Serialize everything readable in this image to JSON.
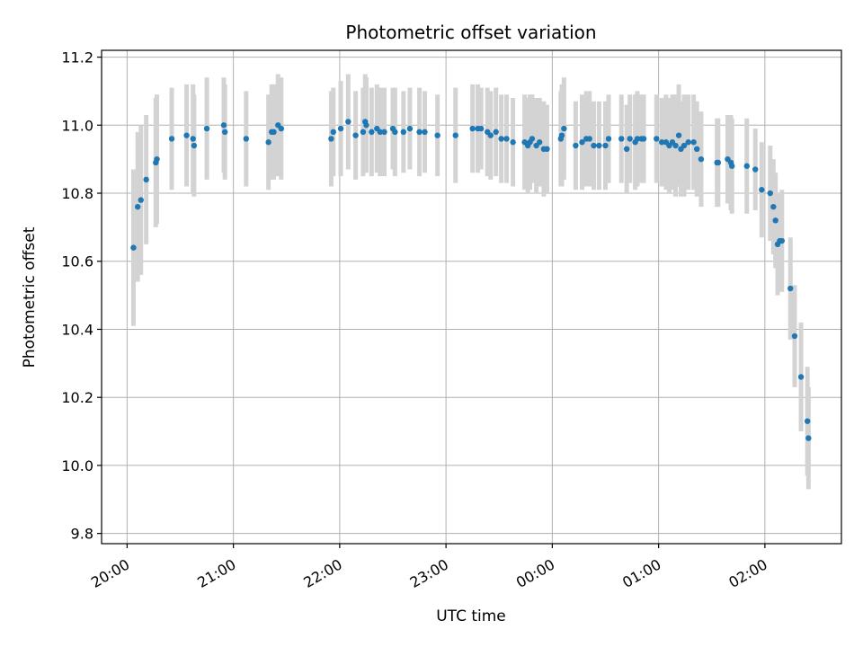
{
  "chart_data": {
    "type": "scatter",
    "title": "Photometric offset variation",
    "xlabel": "UTC time",
    "ylabel": "Photometric offset",
    "grid": true,
    "legend": "none",
    "x_ticks": [
      "20:00",
      "21:00",
      "22:00",
      "23:00",
      "00:00",
      "01:00",
      "02:00"
    ],
    "x_tick_hours": [
      20,
      21,
      22,
      23,
      24,
      25,
      26
    ],
    "y_ticks": [
      9.8,
      10.0,
      10.2,
      10.4,
      10.6,
      10.8,
      11.0,
      11.2
    ],
    "xlim_hours": [
      19.76,
      26.72
    ],
    "ylim": [
      9.77,
      11.22
    ],
    "colors": {
      "point": "#1f77b4",
      "errorbar": "#d3d3d3"
    },
    "series": [
      {
        "x_hours": [
          20.06,
          20.1,
          20.13,
          20.18,
          20.27,
          20.28,
          20.42,
          20.56,
          20.62,
          20.63,
          20.75,
          20.91,
          20.92,
          21.12,
          21.33,
          21.36,
          21.38,
          21.42,
          21.45,
          21.92,
          21.94,
          22.01,
          22.08,
          22.15,
          22.22,
          22.24,
          22.25,
          22.3,
          22.35,
          22.38,
          22.42,
          22.5,
          22.52,
          22.6,
          22.66,
          22.75,
          22.8,
          22.92,
          23.09,
          23.25,
          23.3,
          23.33,
          23.39,
          23.42,
          23.47,
          23.52,
          23.57,
          23.63,
          23.74,
          23.77,
          23.79,
          23.81,
          23.85,
          23.88,
          23.92,
          23.95,
          24.08,
          24.09,
          24.11,
          24.22,
          24.28,
          24.32,
          24.35,
          24.39,
          24.44,
          24.5,
          24.53,
          24.65,
          24.7,
          24.73,
          24.78,
          24.8,
          24.84,
          24.86,
          24.98,
          25.03,
          25.07,
          25.1,
          25.13,
          25.16,
          25.19,
          25.21,
          25.24,
          25.28,
          25.33,
          25.36,
          25.4,
          25.55,
          25.56,
          25.65,
          25.68,
          25.69,
          25.83,
          25.91,
          25.97,
          26.05,
          26.08,
          26.1,
          26.12,
          26.14,
          26.16,
          26.24,
          26.28,
          26.34,
          26.4,
          26.41
        ],
        "y": [
          10.64,
          10.76,
          10.78,
          10.84,
          10.89,
          10.9,
          10.96,
          10.97,
          10.96,
          10.94,
          10.99,
          11.0,
          10.98,
          10.96,
          10.95,
          10.98,
          10.98,
          11.0,
          10.99,
          10.96,
          10.98,
          10.99,
          11.01,
          10.97,
          10.98,
          11.01,
          11.0,
          10.98,
          10.99,
          10.98,
          10.98,
          10.99,
          10.98,
          10.98,
          10.99,
          10.98,
          10.98,
          10.97,
          10.97,
          10.99,
          10.99,
          10.99,
          10.98,
          10.97,
          10.98,
          10.96,
          10.96,
          10.95,
          10.95,
          10.94,
          10.95,
          10.96,
          10.94,
          10.95,
          10.93,
          10.93,
          10.96,
          10.97,
          10.99,
          10.94,
          10.95,
          10.96,
          10.96,
          10.94,
          10.94,
          10.94,
          10.96,
          10.96,
          10.93,
          10.96,
          10.95,
          10.96,
          10.96,
          10.96,
          10.96,
          10.95,
          10.95,
          10.94,
          10.95,
          10.94,
          10.97,
          10.93,
          10.94,
          10.95,
          10.95,
          10.93,
          10.9,
          10.89,
          10.89,
          10.9,
          10.89,
          10.88,
          10.88,
          10.87,
          10.81,
          10.8,
          10.76,
          10.72,
          10.65,
          10.66,
          10.66,
          10.52,
          10.38,
          10.26,
          10.13,
          10.08
        ],
        "err": [
          0.23,
          0.22,
          0.22,
          0.19,
          0.19,
          0.19,
          0.15,
          0.15,
          0.16,
          0.15,
          0.15,
          0.14,
          0.14,
          0.14,
          0.14,
          0.14,
          0.14,
          0.15,
          0.15,
          0.14,
          0.13,
          0.14,
          0.14,
          0.13,
          0.13,
          0.14,
          0.14,
          0.13,
          0.13,
          0.13,
          0.13,
          0.12,
          0.13,
          0.12,
          0.12,
          0.13,
          0.12,
          0.12,
          0.14,
          0.13,
          0.13,
          0.12,
          0.13,
          0.13,
          0.13,
          0.13,
          0.13,
          0.13,
          0.14,
          0.14,
          0.14,
          0.13,
          0.14,
          0.13,
          0.14,
          0.13,
          0.14,
          0.15,
          0.15,
          0.13,
          0.14,
          0.14,
          0.14,
          0.13,
          0.13,
          0.13,
          0.13,
          0.13,
          0.13,
          0.13,
          0.14,
          0.14,
          0.13,
          0.13,
          0.13,
          0.13,
          0.14,
          0.14,
          0.14,
          0.15,
          0.15,
          0.14,
          0.15,
          0.14,
          0.14,
          0.14,
          0.14,
          0.13,
          0.13,
          0.13,
          0.14,
          0.14,
          0.14,
          0.12,
          0.14,
          0.14,
          0.14,
          0.14,
          0.15,
          0.14,
          0.15,
          0.15,
          0.15,
          0.16,
          0.16,
          0.15
        ]
      }
    ]
  }
}
